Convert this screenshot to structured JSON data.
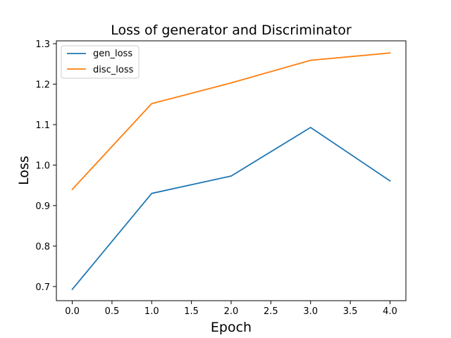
{
  "chart_data": {
    "type": "line",
    "title": "Loss of generator and Discriminator",
    "xlabel": "Epoch",
    "ylabel": "Loss",
    "x": [
      0,
      1,
      2,
      3,
      4
    ],
    "xlim": [
      -0.2,
      4.2
    ],
    "ylim": [
      0.665,
      1.307
    ],
    "xticks": [
      0.0,
      0.5,
      1.0,
      1.5,
      2.0,
      2.5,
      3.0,
      3.5,
      4.0
    ],
    "xtick_labels": [
      "0.0",
      "0.5",
      "1.0",
      "1.5",
      "2.0",
      "2.5",
      "3.0",
      "3.5",
      "4.0"
    ],
    "yticks": [
      0.7,
      0.8,
      0.9,
      1.0,
      1.1,
      1.2,
      1.3
    ],
    "ytick_labels": [
      "0.7",
      "0.8",
      "0.9",
      "1.0",
      "1.1",
      "1.2",
      "1.3"
    ],
    "grid": false,
    "legend_position": "top-left",
    "series": [
      {
        "name": "gen_loss",
        "color": "#1f77b4",
        "values": [
          0.693,
          0.93,
          0.973,
          1.093,
          0.961
        ]
      },
      {
        "name": "disc_loss",
        "color": "#ff7f0e",
        "values": [
          0.94,
          1.152,
          1.203,
          1.259,
          1.277
        ]
      }
    ]
  }
}
